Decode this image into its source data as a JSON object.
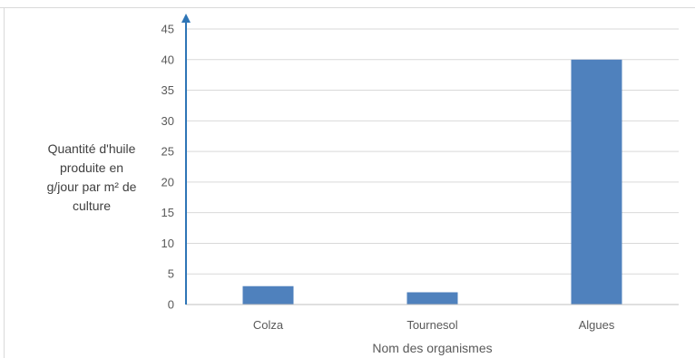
{
  "chart_data": {
    "type": "bar",
    "categories": [
      "Colza",
      "Tournesol",
      "Algues"
    ],
    "values": [
      3,
      2,
      40
    ],
    "title": "",
    "xlabel": "Nom des organismes",
    "ylabel_lines": [
      "Quantité d'huile",
      "produite en",
      "g/jour par m² de",
      "culture"
    ],
    "ylim": [
      0,
      45
    ],
    "yticks": [
      0,
      5,
      10,
      15,
      20,
      25,
      30,
      35,
      40,
      45
    ],
    "grid": true,
    "legend": "none",
    "bar_color": "#4f81bd",
    "grid_color": "#d9d9d9",
    "axis_color": "#2e75b6"
  }
}
